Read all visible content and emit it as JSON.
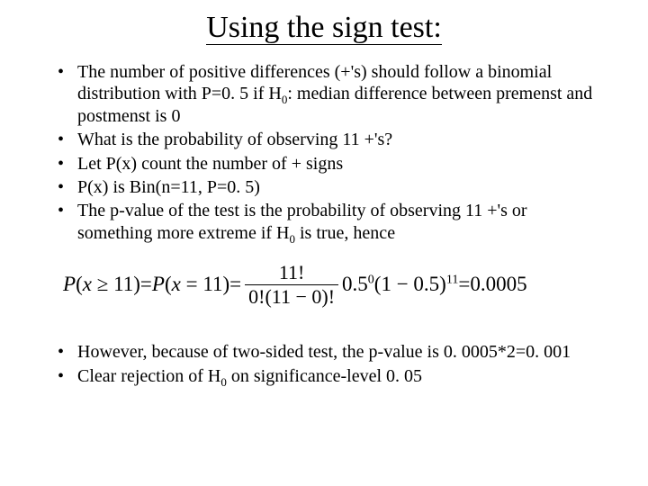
{
  "title": "Using the sign test:",
  "bullets_top": [
    "The number of positive differences (+'s) should follow a binomial distribution with P=0. 5 if H",
    "What is the probability of observing 11 +'s?",
    "Let P(x) count the number of + signs",
    "P(x) is Bin(n=11, P=0. 5)",
    "The p-value of the test is the probability of observing 11 +'s or something more extreme if H"
  ],
  "bullet1_tail": ": median difference between premenst and postmenst is 0",
  "bullet5_tail": " is true, hence",
  "h0_sub": "0",
  "equation": {
    "lhs_p": "P",
    "lhs_open": "(",
    "lhs_x": "x",
    "lhs_ge": " ≥ ",
    "lhs_n": "11",
    "lhs_close": ")",
    "eq": " = ",
    "mid_p": "P",
    "mid_open": "(",
    "mid_x": "x",
    "mid_eq": " = ",
    "mid_n": "11",
    "mid_close": ")",
    "frac_num": "11!",
    "frac_den": "0!(11 − 0)!",
    "term1_base": "0.5",
    "term1_exp": "0",
    "term2_open": "(1 − 0.5)",
    "term2_exp": "11",
    "result": "0.0005"
  },
  "bullets_bottom": [
    "However, because of two-sided test, the p-value is 0. 0005*2=0. 001",
    "Clear rejection of H"
  ],
  "bullet_bottom2_tail": " on significance-level 0. 05"
}
